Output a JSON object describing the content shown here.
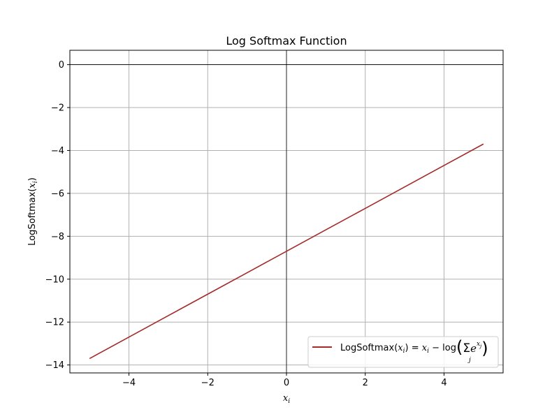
{
  "chart_data": {
    "type": "line",
    "title": "Log Softmax Function",
    "xlabel": "x_i",
    "ylabel": "LogSoftmax(x_i)",
    "xlim": [
      -5.5,
      5.5
    ],
    "ylim": [
      -14.37,
      0.67
    ],
    "xticks": [
      -4,
      -2,
      0,
      2,
      4
    ],
    "yticks": [
      0,
      -2,
      -4,
      -6,
      -8,
      -10,
      -12,
      -14
    ],
    "xtick_labels": [
      "−4",
      "−2",
      "0",
      "2",
      "4"
    ],
    "ytick_labels": [
      "0",
      "−2",
      "−4",
      "−6",
      "−8",
      "−10",
      "−12",
      "−14"
    ],
    "grid": true,
    "reference_lines": {
      "y": 0,
      "x": 0
    },
    "legend_placement": "lower-right",
    "series": [
      {
        "name": "LogSoftmax(x_i) = x_i − log(Σ_j e^{x_j})",
        "color": "#a52a2a",
        "x": [
          -5,
          -4,
          -3,
          -2,
          -1,
          0,
          1,
          2,
          3,
          4,
          5
        ],
        "y": [
          -13.7,
          -12.7,
          -11.7,
          -10.7,
          -9.7,
          -8.7,
          -7.7,
          -6.7,
          -5.7,
          -4.7,
          -3.7
        ]
      }
    ]
  }
}
